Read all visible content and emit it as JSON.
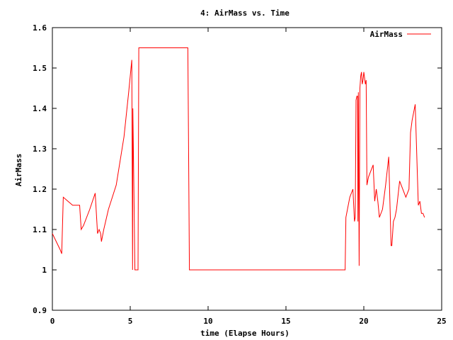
{
  "chart_data": {
    "type": "line",
    "title": "4: AirMass vs. Time",
    "xlabel": "time (Elapse Hours)",
    "ylabel": "AirMass",
    "xlim": [
      0,
      25
    ],
    "ylim": [
      0.9,
      1.6
    ],
    "xticks": [
      0,
      5,
      10,
      15,
      20,
      25
    ],
    "xtick_labels": [
      "0",
      "5",
      "10",
      "15",
      "20",
      "25"
    ],
    "yticks": [
      0.9,
      1.0,
      1.1,
      1.2,
      1.3,
      1.4,
      1.5,
      1.6
    ],
    "ytick_labels": [
      "0.9",
      "1",
      "1.1",
      "1.2",
      "1.3",
      "1.4",
      "1.5",
      "1.6"
    ],
    "grid": false,
    "legend_position": "top-right",
    "series": [
      {
        "name": "AirMass",
        "color": "#ff0000",
        "x": [
          0.0,
          0.25,
          0.5,
          0.6,
          0.7,
          1.0,
          1.3,
          1.6,
          1.75,
          1.85,
          2.0,
          2.4,
          2.75,
          2.9,
          3.0,
          3.1,
          3.15,
          3.3,
          3.6,
          4.1,
          4.6,
          4.9,
          5.1,
          5.15,
          5.17,
          5.3,
          5.35,
          5.5,
          5.55,
          5.6,
          8.7,
          8.75,
          8.8,
          18.8,
          18.85,
          18.95,
          19.1,
          19.3,
          19.4,
          19.45,
          19.5,
          19.55,
          19.6,
          19.62,
          19.65,
          19.7,
          19.75,
          19.8,
          19.85,
          19.9,
          19.95,
          20.0,
          20.1,
          20.15,
          20.2,
          20.3,
          20.4,
          20.6,
          20.7,
          20.8,
          20.9,
          21.0,
          21.1,
          21.2,
          21.3,
          21.4,
          21.6,
          21.75,
          21.8,
          21.85,
          21.9,
          22.0,
          22.1,
          22.3,
          22.6,
          22.7,
          22.8,
          22.9,
          23.0,
          23.1,
          23.3,
          23.5,
          23.6,
          23.7,
          23.8,
          23.9
        ],
        "y": [
          1.09,
          1.07,
          1.05,
          1.04,
          1.18,
          1.17,
          1.16,
          1.16,
          1.16,
          1.1,
          1.11,
          1.15,
          1.19,
          1.09,
          1.1,
          1.09,
          1.07,
          1.1,
          1.15,
          1.21,
          1.33,
          1.44,
          1.52,
          1.0,
          1.4,
          1.0,
          1.0,
          1.0,
          1.55,
          1.55,
          1.55,
          1.28,
          1.0,
          1.0,
          1.13,
          1.15,
          1.18,
          1.2,
          1.12,
          1.13,
          1.42,
          1.43,
          1.43,
          1.12,
          1.44,
          1.01,
          1.45,
          1.48,
          1.49,
          1.46,
          1.47,
          1.49,
          1.46,
          1.47,
          1.21,
          1.23,
          1.24,
          1.26,
          1.17,
          1.2,
          1.17,
          1.13,
          1.14,
          1.15,
          1.18,
          1.21,
          1.28,
          1.06,
          1.06,
          1.09,
          1.12,
          1.13,
          1.15,
          1.22,
          1.19,
          1.18,
          1.19,
          1.2,
          1.34,
          1.37,
          1.41,
          1.16,
          1.17,
          1.14,
          1.14,
          1.13
        ]
      }
    ]
  }
}
